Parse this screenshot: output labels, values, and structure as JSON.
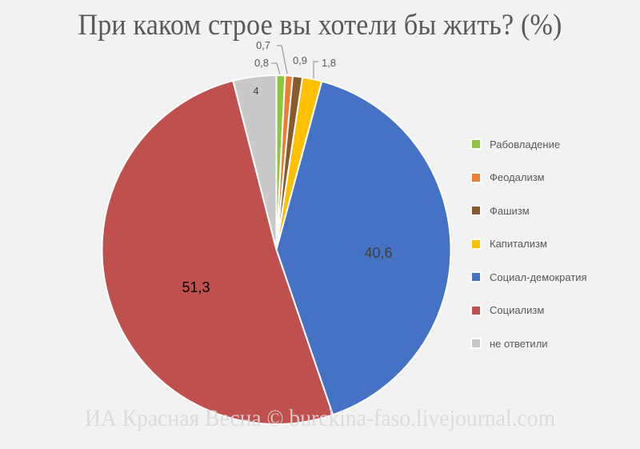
{
  "title": "При каком строе вы хотели бы жить? (%)",
  "watermark": "ИА Красная Весна © burckina-faso.livejournal.com",
  "legend": [
    {
      "label": "Рабовладение",
      "color": "#8dc63f"
    },
    {
      "label": "Феодализм",
      "color": "#ed7d31"
    },
    {
      "label": "Фашизм",
      "color": "#8a5a2e"
    },
    {
      "label": "Капитализм",
      "color": "#ffc000"
    },
    {
      "label": "Социал-демократия",
      "color": "#4472c4"
    },
    {
      "label": "Социализм",
      "color": "#c0504d"
    },
    {
      "label": "не ответили",
      "color": "#c9c9c9"
    }
  ],
  "chart_data": {
    "type": "pie",
    "title": "При каком строе вы хотели бы жить? (%)",
    "categories": [
      "Рабовладение",
      "Феодализм",
      "Фашизм",
      "Капитализм",
      "Социал-демократия",
      "Социализм",
      "не ответили"
    ],
    "values": [
      0.8,
      0.7,
      0.9,
      1.8,
      40.6,
      51.3,
      4.0
    ],
    "labels": [
      "0,8",
      "0,7",
      "0,9",
      "1,8",
      "40,6",
      "51,3",
      "4"
    ],
    "colors": [
      "#8dc63f",
      "#ed7d31",
      "#8a5a2e",
      "#ffc000",
      "#4472c4",
      "#c0504d",
      "#c9c9c9"
    ],
    "start_angle_deg": 0,
    "direction": "clockwise",
    "legend_position": "right"
  }
}
